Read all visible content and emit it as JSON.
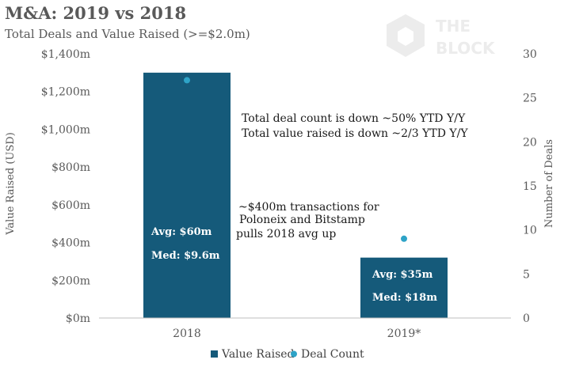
{
  "chart_data": {
    "type": "bar",
    "title": "M&A: 2019 vs 2018",
    "subtitle": "Total Deals and Value Raised (>=$2.0m)",
    "categories": [
      "2018",
      "2019*"
    ],
    "series": [
      {
        "name": "Value Raised",
        "kind": "bar",
        "axis": "left",
        "color": "#155a7a",
        "values": [
          1300,
          320
        ]
      },
      {
        "name": "Deal Count",
        "kind": "scatter",
        "axis": "right",
        "color": "#2ea3c7",
        "values": [
          27,
          9
        ]
      }
    ],
    "ylabel": "Value Raised (USD)",
    "y2label": "Number of Deals",
    "ylim": [
      0,
      1400
    ],
    "y2lim": [
      0,
      30
    ],
    "yticks": [
      "$0m",
      "$200m",
      "$400m",
      "$600m",
      "$800m",
      "$1,000m",
      "$1,200m",
      "$1,400m"
    ],
    "y2ticks": [
      "0",
      "5",
      "10",
      "15",
      "20",
      "25",
      "30"
    ],
    "bar_labels": [
      {
        "avg": "Avg: $60m",
        "med": "Med: $9.6m"
      },
      {
        "avg": "Avg: $35m",
        "med": "Med: $18m"
      }
    ],
    "annotations": [
      "Total deal count is down ~50% YTD Y/Y",
      "Total value raised is down ~2/3 YTD Y/Y",
      "~$400m transactions for",
      "Poloneix and Bitstamp",
      "pulls 2018 avg up"
    ],
    "legend": "bottom",
    "grid": false
  },
  "logo": {
    "line1": "THE",
    "line2": "BLOCK",
    "icon": "cube-icon"
  }
}
